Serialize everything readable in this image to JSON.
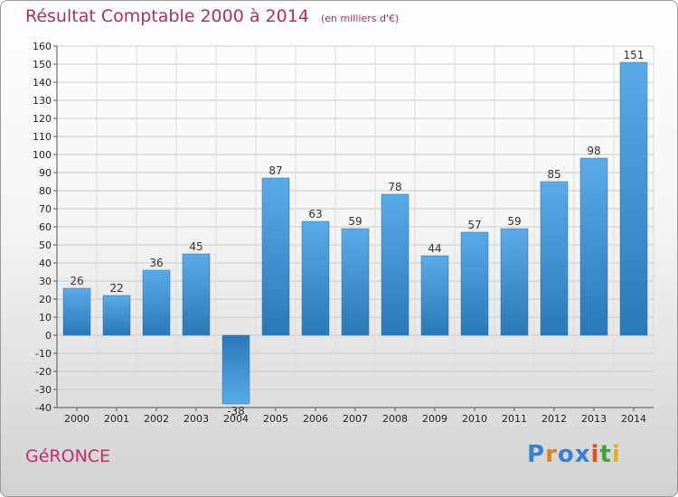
{
  "header": {
    "title": "Résultat Comptable 2000 à 2014",
    "subtitle": "(en milliers d'€)"
  },
  "footer": {
    "commune": "GéRONCE",
    "logo": "Proxiti"
  },
  "colors": {
    "bar_light": "#5aaae8",
    "bar_dark": "#2a78b8",
    "title": "#b0305a",
    "grid": "#c8c8c8"
  },
  "chart_data": {
    "type": "bar",
    "title": "Résultat Comptable 2000 à 2014",
    "subtitle": "(en milliers d'€)",
    "xlabel": "",
    "ylabel": "",
    "categories": [
      "2000",
      "2001",
      "2002",
      "2003",
      "2004",
      "2005",
      "2006",
      "2007",
      "2008",
      "2009",
      "2010",
      "2011",
      "2012",
      "2013",
      "2014"
    ],
    "values": [
      26,
      22,
      36,
      45,
      -38,
      87,
      63,
      59,
      78,
      44,
      57,
      59,
      85,
      98,
      151
    ],
    "data_labels": [
      "26",
      "22",
      "36",
      "45",
      "-38",
      "87",
      "63",
      "59",
      "78",
      "44",
      "57",
      "59",
      "85",
      "98",
      "151"
    ],
    "ylim": [
      -40,
      160
    ],
    "yticks": [
      -40,
      -30,
      -20,
      -10,
      0,
      10,
      20,
      30,
      40,
      50,
      60,
      70,
      80,
      90,
      100,
      110,
      120,
      130,
      140,
      150,
      160
    ],
    "grid": true
  }
}
